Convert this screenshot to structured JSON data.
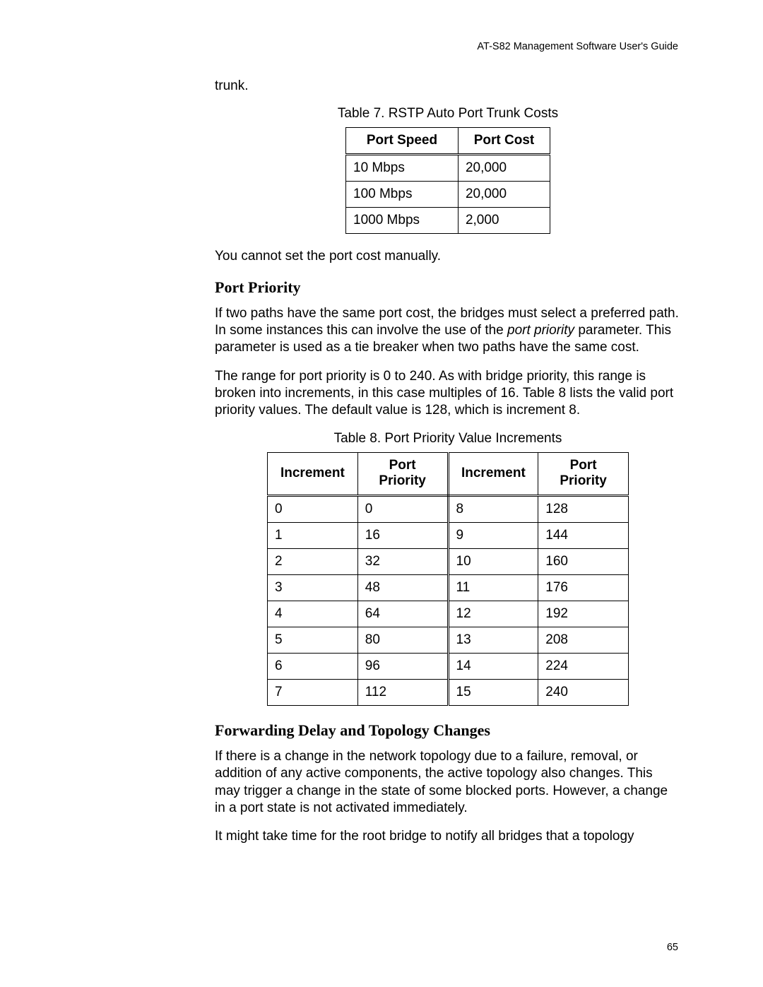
{
  "doc_header": "AT-S82 Management Software User's Guide",
  "page_number": "65",
  "trunk_line": "trunk.",
  "table7": {
    "caption": "Table 7. RSTP Auto Port Trunk Costs",
    "headers": {
      "speed": "Port Speed",
      "cost": "Port Cost"
    },
    "rows": [
      {
        "speed": "10 Mbps",
        "cost": "20,000"
      },
      {
        "speed": "100 Mbps",
        "cost": "20,000"
      },
      {
        "speed": "1000 Mbps",
        "cost": "2,000"
      }
    ]
  },
  "cannot_set": "You cannot set the port cost manually.",
  "port_priority_heading": "Port Priority",
  "pp_para1_a": "If two paths have the same port cost, the bridges must select a preferred path. In some instances this can involve the use of the ",
  "pp_para1_italic": "port priority",
  "pp_para1_b": " parameter. This parameter is used as a tie breaker when two paths have the same cost.",
  "pp_para2": "The range for port priority is 0 to 240. As with bridge priority, this range is broken into increments, in this case multiples of 16. Table 8 lists the valid port priority values. The default value is 128, which is increment 8.",
  "table8": {
    "caption": "Table 8. Port Priority Value Increments",
    "headers": {
      "inc_a": "Increment",
      "pp_a_1": "Port",
      "pp_a_2": "Priority",
      "inc_b": "Increment",
      "pp_b_1": "Port",
      "pp_b_2": "Priority"
    },
    "rows": [
      {
        "ia": "0",
        "pa": "0",
        "ib": "8",
        "pb": "128"
      },
      {
        "ia": "1",
        "pa": "16",
        "ib": "9",
        "pb": "144"
      },
      {
        "ia": "2",
        "pa": "32",
        "ib": "10",
        "pb": "160"
      },
      {
        "ia": "3",
        "pa": "48",
        "ib": "11",
        "pb": "176"
      },
      {
        "ia": "4",
        "pa": "64",
        "ib": "12",
        "pb": "192"
      },
      {
        "ia": "5",
        "pa": "80",
        "ib": "13",
        "pb": "208"
      },
      {
        "ia": "6",
        "pa": "96",
        "ib": "14",
        "pb": "224"
      },
      {
        "ia": "7",
        "pa": "112",
        "ib": "15",
        "pb": "240"
      }
    ]
  },
  "fd_heading": "Forwarding Delay and Topology Changes",
  "fd_para1": "If there is a change in the network topology due to a failure, removal, or addition of any active components, the active topology also changes. This may trigger a change in the state of some blocked ports. However, a change in a port state is not activated immediately.",
  "fd_para2": "It might take time for the root bridge to notify all bridges that a topology"
}
